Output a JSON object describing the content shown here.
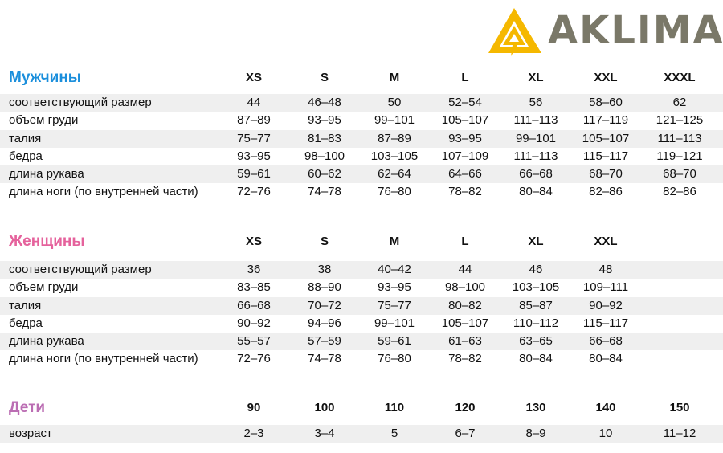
{
  "brand": {
    "name": "AKLIMA",
    "logo_color": "#f5b800",
    "text_color": "#7a7868"
  },
  "sections": [
    {
      "id": "men",
      "title": "Мужчины",
      "color": "#1b8fdc",
      "sizes": [
        "XS",
        "S",
        "M",
        "L",
        "XL",
        "XXL",
        "XXXL"
      ],
      "rows": [
        {
          "label": "соответствующий размер",
          "values": [
            "44",
            "46–48",
            "50",
            "52–54",
            "56",
            "58–60",
            "62"
          ]
        },
        {
          "label": "объем груди",
          "values": [
            "87–89",
            "93–95",
            "99–101",
            "105–107",
            "111–113",
            "117–119",
            "121–125"
          ]
        },
        {
          "label": "талия",
          "values": [
            "75–77",
            "81–83",
            "87–89",
            "93–95",
            "99–101",
            "105–107",
            "111–113"
          ]
        },
        {
          "label": "бедра",
          "values": [
            "93–95",
            "98–100",
            "103–105",
            "107–109",
            "111–113",
            "115–117",
            "119–121"
          ]
        },
        {
          "label": "длина рукава",
          "values": [
            "59–61",
            "60–62",
            "62–64",
            "64–66",
            "66–68",
            "68–70",
            "68–70"
          ]
        },
        {
          "label": "длина ноги (по внутренней части)",
          "values": [
            "72–76",
            "74–78",
            "76–80",
            "78–82",
            "80–84",
            "82–86",
            "82–86"
          ]
        }
      ]
    },
    {
      "id": "women",
      "title": "Женщины",
      "color": "#e5629c",
      "sizes": [
        "XS",
        "S",
        "M",
        "L",
        "XL",
        "XXL"
      ],
      "rows": [
        {
          "label": "соответствующий размер",
          "values": [
            "36",
            "38",
            "40–42",
            "44",
            "46",
            "48"
          ]
        },
        {
          "label": "объем груди",
          "values": [
            "83–85",
            "88–90",
            "93–95",
            "98–100",
            "103–105",
            "109–111"
          ]
        },
        {
          "label": "талия",
          "values": [
            "66–68",
            "70–72",
            "75–77",
            "80–82",
            "85–87",
            "90–92"
          ]
        },
        {
          "label": "бедра",
          "values": [
            "90–92",
            "94–96",
            "99–101",
            "105–107",
            "110–112",
            "115–117"
          ]
        },
        {
          "label": "длина рукава",
          "values": [
            "55–57",
            "57–59",
            "59–61",
            "61–63",
            "63–65",
            "66–68"
          ]
        },
        {
          "label": "длина ноги (по внутренней части)",
          "values": [
            "72–76",
            "74–78",
            "76–80",
            "78–82",
            "80–84",
            "80–84"
          ]
        }
      ]
    },
    {
      "id": "kids",
      "title": "Дети",
      "color": "#bb6db3",
      "sizes": [
        "90",
        "100",
        "110",
        "120",
        "130",
        "140",
        "150"
      ],
      "rows": [
        {
          "label": "возраст",
          "values": [
            "2–3",
            "3–4",
            "5",
            "6–7",
            "8–9",
            "10",
            "11–12"
          ]
        }
      ]
    }
  ]
}
